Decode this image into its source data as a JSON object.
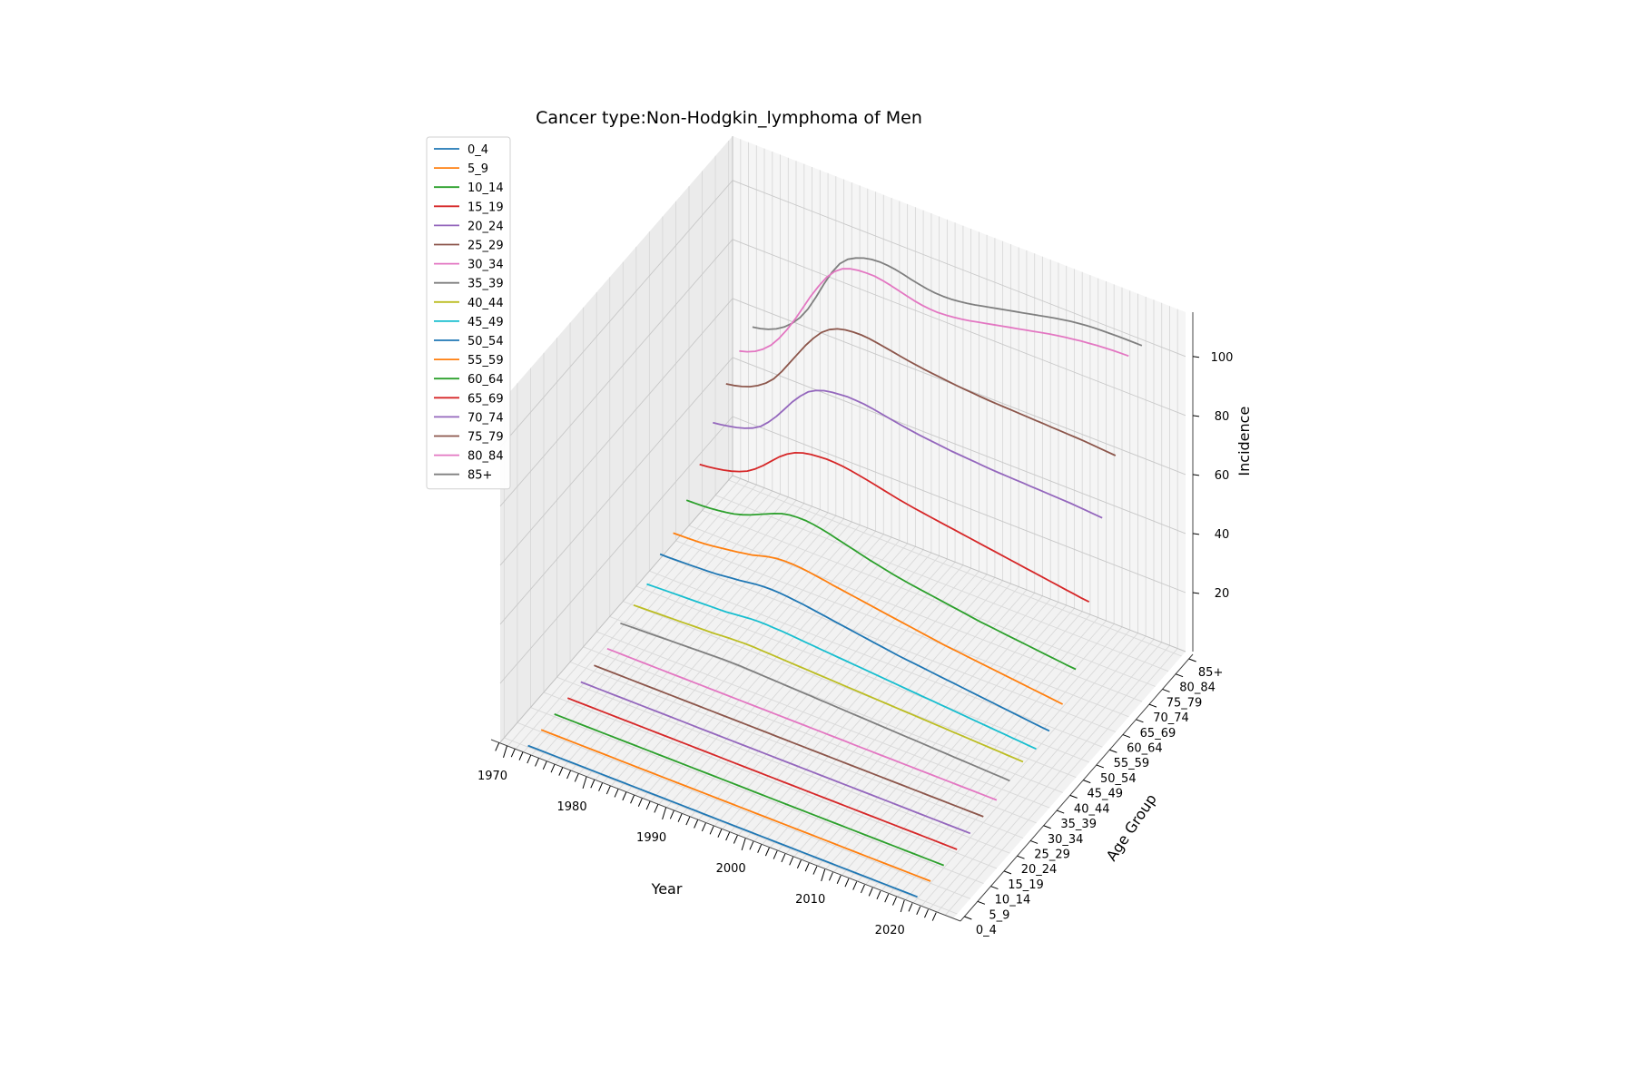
{
  "chart_data": {
    "type": "line",
    "projection": "3d",
    "title": "Cancer type:Non-Hodgkin_lymphoma of Men",
    "xlabel": "Year",
    "ylabel": "Age Group",
    "zlabel": "Incidence",
    "x_ticks": [
      1970,
      1980,
      1990,
      2000,
      2010,
      2020
    ],
    "y_ticks": [
      "0_4",
      "5_9",
      "10_14",
      "15_19",
      "20_24",
      "25_29",
      "30_34",
      "35_39",
      "40_44",
      "45_49",
      "50_54",
      "55_59",
      "60_64",
      "65_69",
      "70_74",
      "75_79",
      "80_84",
      "85+"
    ],
    "z_ticks": [
      20,
      40,
      60,
      80,
      100
    ],
    "xlim": [
      1968,
      2025
    ],
    "zlim": [
      0,
      115
    ],
    "grid": true,
    "legend_position": "top-left",
    "x_start": 1971,
    "series": [
      {
        "name": "0_4",
        "color": "#1f77b4",
        "values": [
          0.5,
          0.5,
          0.5,
          0.5,
          0.5,
          0.5,
          0.5,
          0.5,
          0.5,
          0.5,
          0.5,
          0.5,
          0.5,
          0.5,
          0.5,
          0.5,
          0.5,
          0.5,
          0.5,
          0.5,
          0.5,
          0.5,
          0.5,
          0.5,
          0.5,
          0.5,
          0.5,
          0.5,
          0.5,
          0.5,
          0.5,
          0.5,
          0.5,
          0.5,
          0.5,
          0.5,
          0.5,
          0.5,
          0.5,
          0.5,
          0.5,
          0.5,
          0.5,
          0.5,
          0.5,
          0.5,
          0.5,
          0.5,
          0.5,
          0.5
        ]
      },
      {
        "name": "5_9",
        "color": "#ff7f0e",
        "values": [
          0.7,
          0.7,
          0.7,
          0.7,
          0.7,
          0.7,
          0.7,
          0.7,
          0.7,
          0.7,
          0.7,
          0.7,
          0.7,
          0.7,
          0.7,
          0.7,
          0.7,
          0.7,
          0.7,
          0.7,
          0.7,
          0.7,
          0.7,
          0.7,
          0.7,
          0.7,
          0.7,
          0.7,
          0.7,
          0.7,
          0.7,
          0.7,
          0.7,
          0.7,
          0.7,
          0.7,
          0.7,
          0.7,
          0.7,
          0.7,
          0.7,
          0.7,
          0.7,
          0.7,
          0.7,
          0.7,
          0.7,
          0.7,
          0.7,
          0.7
        ]
      },
      {
        "name": "10_14",
        "color": "#2ca02c",
        "values": [
          0.9,
          0.9,
          0.9,
          0.9,
          0.9,
          0.9,
          0.9,
          0.9,
          0.9,
          0.9,
          0.9,
          0.9,
          0.9,
          0.9,
          0.9,
          0.9,
          0.9,
          0.9,
          0.9,
          0.9,
          0.9,
          0.9,
          0.9,
          0.9,
          0.9,
          0.9,
          0.9,
          0.9,
          0.9,
          0.9,
          0.9,
          0.9,
          0.9,
          0.9,
          0.9,
          0.9,
          0.9,
          0.9,
          0.9,
          0.9,
          0.9,
          0.9,
          0.9,
          0.9,
          0.9,
          0.9,
          0.9,
          0.9,
          0.9,
          0.9
        ]
      },
      {
        "name": "15_19",
        "color": "#d62728",
        "values": [
          1.2,
          1.2,
          1.2,
          1.2,
          1.2,
          1.2,
          1.2,
          1.2,
          1.2,
          1.2,
          1.2,
          1.2,
          1.2,
          1.2,
          1.2,
          1.2,
          1.2,
          1.2,
          1.2,
          1.2,
          1.2,
          1.2,
          1.2,
          1.2,
          1.2,
          1.2,
          1.2,
          1.2,
          1.2,
          1.2,
          1.2,
          1.2,
          1.2,
          1.2,
          1.2,
          1.2,
          1.2,
          1.2,
          1.2,
          1.2,
          1.2,
          1.2,
          1.2,
          1.2,
          1.2,
          1.2,
          1.2,
          1.2,
          1.2,
          1.2
        ]
      },
      {
        "name": "20_24",
        "color": "#9467bd",
        "values": [
          1.5,
          1.5,
          1.5,
          1.5,
          1.5,
          1.5,
          1.5,
          1.5,
          1.5,
          1.5,
          1.5,
          1.5,
          1.5,
          1.5,
          1.5,
          1.5,
          1.5,
          1.5,
          1.5,
          1.5,
          1.5,
          1.5,
          1.5,
          1.5,
          1.5,
          1.5,
          1.5,
          1.5,
          1.5,
          1.5,
          1.5,
          1.5,
          1.5,
          1.5,
          1.5,
          1.5,
          1.5,
          1.5,
          1.5,
          1.5,
          1.5,
          1.5,
          1.5,
          1.5,
          1.5,
          1.5,
          1.5,
          1.5,
          1.5,
          1.5
        ]
      },
      {
        "name": "25_29",
        "color": "#8c564b",
        "values": [
          2,
          2,
          2,
          2,
          2,
          2,
          2,
          2,
          2,
          2,
          2,
          2,
          2,
          2,
          2,
          2,
          2,
          2,
          2,
          2,
          2,
          2,
          2,
          2,
          2,
          2,
          2,
          2,
          2,
          2,
          2,
          2,
          2,
          2,
          2,
          2,
          2,
          2,
          2,
          2,
          2,
          2,
          2,
          2,
          2,
          2,
          2,
          2,
          2,
          2
        ]
      },
      {
        "name": "30_34",
        "color": "#e377c2",
        "values": [
          2.5,
          2.5,
          2.5,
          2.5,
          2.5,
          2.5,
          2.5,
          2.5,
          2.5,
          2.5,
          2.5,
          2.5,
          2.5,
          2.5,
          2.5,
          2.5,
          2.5,
          2.5,
          2.5,
          2.5,
          2.5,
          2.5,
          2.5,
          2.5,
          2.5,
          2.5,
          2.5,
          2.5,
          2.5,
          2.5,
          2.5,
          2.5,
          2.5,
          2.5,
          2.5,
          2.5,
          2.5,
          2.5,
          2.5,
          2.5,
          2.5,
          2.5,
          2.5,
          2.5,
          2.5,
          2.5,
          2.5,
          2.5,
          2.5,
          2.5
        ]
      },
      {
        "name": "35_39",
        "color": "#7f7f7f",
        "values": [
          6,
          6.1,
          6.2,
          6.3,
          6.4,
          6.5,
          6.6,
          6.7,
          6.8,
          6.9,
          7,
          7.1,
          7.2,
          7.3,
          7.3,
          7.3,
          7.2,
          7.1,
          7,
          6.9,
          6.8,
          6.7,
          6.6,
          6.5,
          6.4,
          6.3,
          6.2,
          6.1,
          6,
          5.9,
          5.8,
          5.7,
          5.6,
          5.5,
          5.4,
          5.3,
          5.2,
          5.1,
          5,
          4.9,
          4.8,
          4.7,
          4.6,
          4.5,
          4.4,
          4.3,
          4.2,
          4.1,
          4,
          3.9
        ]
      },
      {
        "name": "40_44",
        "color": "#bcbd22",
        "values": [
          7,
          7.1,
          7.2,
          7.3,
          7.4,
          7.5,
          7.6,
          7.7,
          7.8,
          7.9,
          8,
          8.2,
          8.4,
          8.5,
          8.6,
          8.6,
          8.5,
          8.4,
          8.3,
          8.2,
          8.1,
          8,
          7.9,
          7.8,
          7.7,
          7.6,
          7.5,
          7.4,
          7.3,
          7.2,
          7.1,
          7,
          6.9,
          6.8,
          6.7,
          6.6,
          6.5,
          6.4,
          6.3,
          6.2,
          6.1,
          6,
          5.9,
          5.8,
          5.7,
          5.6,
          5.5,
          5.4,
          5.3,
          5.2
        ]
      },
      {
        "name": "45_49",
        "color": "#17becf",
        "values": [
          9,
          9.1,
          9.2,
          9.3,
          9.4,
          9.5,
          9.6,
          9.7,
          9.8,
          9.9,
          10,
          10.3,
          10.6,
          10.9,
          11,
          11,
          10.9,
          10.8,
          10.6,
          10.4,
          10.2,
          10,
          9.8,
          9.6,
          9.4,
          9.2,
          9,
          8.8,
          8.6,
          8.4,
          8.2,
          8,
          7.8,
          7.6,
          7.4,
          7.2,
          7,
          6.8,
          6.6,
          6.4,
          6.2,
          6,
          5.8,
          5.6,
          5.4,
          5.2,
          5,
          4.8,
          4.6,
          4.4
        ]
      },
      {
        "name": "50_54",
        "color": "#1f77b4",
        "values": [
          14,
          14,
          14.1,
          14.2,
          14.3,
          14.4,
          14.5,
          14.7,
          15,
          15.3,
          15.6,
          16,
          16.4,
          16.6,
          16.7,
          16.6,
          16.4,
          16.1,
          15.8,
          15.4,
          15,
          14.6,
          14.2,
          13.8,
          13.4,
          13,
          12.6,
          12.2,
          11.8,
          11.4,
          11,
          10.7,
          10.4,
          10.1,
          9.8,
          9.5,
          9.2,
          8.9,
          8.6,
          8.3,
          8,
          7.7,
          7.4,
          7.1,
          6.8,
          6.5,
          6.2,
          5.9,
          5.6,
          5.4
        ]
      },
      {
        "name": "55_59",
        "color": "#ff7f0e",
        "values": [
          16,
          16.1,
          16.2,
          16.3,
          16.5,
          16.8,
          17.2,
          17.6,
          18,
          18.5,
          19,
          19.8,
          20.5,
          21,
          21.2,
          21.2,
          21,
          20.7,
          20.3,
          19.9,
          19.4,
          19,
          18.6,
          18.2,
          17.8,
          17.4,
          17,
          16.6,
          16.2,
          15.8,
          15.4,
          15,
          14.6,
          14.2,
          13.8,
          13.5,
          13.2,
          12.9,
          12.6,
          12.3,
          12,
          11.7,
          11.4,
          11.1,
          10.8,
          10.5,
          10.2,
          9.9,
          9.6,
          9.3
        ]
      },
      {
        "name": "60_64",
        "color": "#2ca02c",
        "values": [
          22,
          22.1,
          22.2,
          22.4,
          22.7,
          23.1,
          23.6,
          24.4,
          25.4,
          26.6,
          27.8,
          29,
          30,
          30.6,
          30.8,
          30.8,
          30.5,
          30,
          29.4,
          28.7,
          28,
          27.3,
          26.6,
          25.9,
          25.3,
          24.7,
          24.1,
          23.6,
          23.1,
          22.7,
          22.3,
          21.9,
          21.5,
          21.1,
          20.7,
          20.3,
          19.9,
          19.5,
          19.2,
          18.9,
          18.6,
          18.3,
          18,
          17.7,
          17.4,
          17.1,
          16.8,
          16.5,
          16.2,
          16
        ]
      },
      {
        "name": "65_69",
        "color": "#d62728",
        "values": [
          29,
          29.3,
          29.7,
          30.2,
          30.9,
          31.8,
          33,
          34.8,
          37,
          39.5,
          42,
          44,
          45.5,
          46.5,
          47,
          47.3,
          47.5,
          47.4,
          47.2,
          46.8,
          46.3,
          45.8,
          45.2,
          44.6,
          44,
          43.4,
          42.9,
          42.4,
          42,
          41.6,
          41.2,
          40.8,
          40.4,
          40,
          39.6,
          39.2,
          38.8,
          38.4,
          38,
          37.6,
          37.2,
          36.8,
          36.4,
          36,
          35.6,
          35.2,
          34.8,
          34.4,
          34,
          33.7
        ]
      },
      {
        "name": "70_74",
        "color": "#9467bd",
        "values": [
          38,
          38.4,
          38.9,
          39.5,
          40.3,
          41.4,
          43,
          45.5,
          48.5,
          52,
          55.5,
          58.5,
          61,
          62.5,
          63.5,
          64,
          64.3,
          64.5,
          64.4,
          64.2,
          63.8,
          63.3,
          62.8,
          62.3,
          61.8,
          61.4,
          61,
          60.7,
          60.4,
          60.1,
          59.8,
          59.6,
          59.4,
          59.2,
          59,
          58.8,
          58.7,
          58.6,
          58.5,
          58.4,
          58.3,
          58.2,
          58.1,
          58,
          57.9,
          57.8,
          57.6,
          57.4,
          57.2,
          57
        ]
      },
      {
        "name": "75_79",
        "color": "#8c564b",
        "values": [
          46,
          46.5,
          47.2,
          48.2,
          49.6,
          51.5,
          54,
          57.5,
          61.5,
          65.5,
          69.5,
          73,
          76,
          78,
          79.3,
          80,
          80.3,
          80.4,
          80.2,
          79.8,
          79.3,
          78.8,
          78.3,
          77.8,
          77.4,
          77,
          76.7,
          76.4,
          76.1,
          75.8,
          75.6,
          75.4,
          75.2,
          75,
          74.9,
          74.8,
          74.7,
          74.6,
          74.5,
          74.4,
          74.3,
          74.2,
          74.1,
          74,
          73.9,
          73.8,
          73.6,
          73.4,
          73.2,
          73
        ]
      },
      {
        "name": "80_84",
        "color": "#e377c2",
        "values": [
          52,
          52.8,
          54,
          55.8,
          58.2,
          61.5,
          65.5,
          70,
          75,
          80,
          84.5,
          88.5,
          91.5,
          93.5,
          94.5,
          95,
          95.2,
          95.2,
          94.8,
          94.2,
          93.5,
          92.8,
          92.1,
          91.6,
          91.3,
          91.2,
          91.4,
          91.7,
          92.1,
          92.6,
          93.2,
          93.8,
          94.4,
          95,
          95.6,
          96.2,
          96.8,
          97.4,
          98,
          98.6,
          99.1,
          99.6,
          100,
          100.4,
          100.7,
          101,
          101.2,
          101.4,
          101.5,
          101.6
        ]
      },
      {
        "name": "85+",
        "color": "#7f7f7f",
        "values": [
          55,
          55.5,
          56.3,
          57.5,
          59.2,
          61.5,
          64.5,
          68.5,
          73.5,
          79,
          84,
          88,
          90.5,
          92,
          93,
          93.6,
          93.8,
          93.7,
          93.3,
          92.7,
          92,
          91.4,
          90.9,
          90.6,
          90.5,
          90.6,
          90.9,
          91.3,
          91.8,
          92.4,
          93,
          93.6,
          94.2,
          94.8,
          95.4,
          96,
          96.6,
          97.2,
          97.8,
          98.3,
          98.8,
          99.2,
          99.5,
          99.7,
          99.8,
          99.9,
          100,
          100,
          100,
          100
        ]
      }
    ]
  }
}
